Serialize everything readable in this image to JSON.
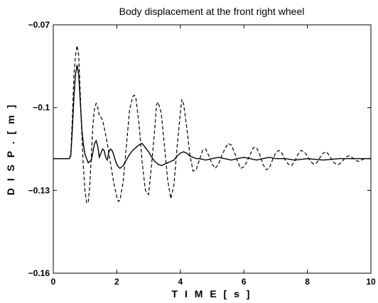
{
  "chart_data": {
    "type": "line",
    "title": "Body displacement at the front right wheel",
    "xlabel": "T I M E   [ s ]",
    "ylabel": "D I S P .   [ m ]",
    "xlim": [
      0,
      10
    ],
    "ylim": [
      -0.16,
      -0.07
    ],
    "xticks": [
      0,
      2,
      4,
      6,
      8,
      10
    ],
    "yticks": [
      -0.16,
      -0.13,
      -0.1,
      -0.07
    ],
    "xtick_labels": [
      "0",
      "2",
      "4",
      "6",
      "8",
      "10"
    ],
    "ytick_labels": [
      "−0.16",
      "−0.13",
      "−0.1",
      "−0.07"
    ],
    "grid": false,
    "series": [
      {
        "style": "solid",
        "color": "#000000",
        "x": [
          0,
          0.5,
          0.55,
          0.6,
          0.65,
          0.7,
          0.75,
          0.8,
          0.85,
          0.9,
          0.95,
          1.0,
          1.1,
          1.2,
          1.3,
          1.35,
          1.4,
          1.45,
          1.5,
          1.55,
          1.6,
          1.65,
          1.7,
          1.75,
          1.8,
          1.85,
          1.9,
          1.95,
          2.0,
          2.05,
          2.1,
          2.2,
          2.3,
          2.4,
          2.5,
          2.6,
          2.7,
          2.8,
          2.9,
          3.0,
          3.1,
          3.2,
          3.3,
          3.4,
          3.5,
          3.6,
          3.7,
          3.8,
          3.9,
          4.0,
          4.1,
          4.2,
          4.3,
          4.4,
          4.5,
          4.6,
          4.8,
          5.0,
          5.2,
          5.4,
          5.6,
          5.8,
          6.0,
          6.2,
          6.4,
          6.6,
          6.8,
          7.0,
          7.3,
          7.6,
          8.0,
          8.5,
          9.0,
          9.5,
          10.0
        ],
        "y": [
          -0.1185,
          -0.1185,
          -0.1175,
          -0.108,
          -0.096,
          -0.088,
          -0.0845,
          -0.088,
          -0.098,
          -0.108,
          -0.1135,
          -0.117,
          -0.12,
          -0.119,
          -0.113,
          -0.112,
          -0.114,
          -0.118,
          -0.1165,
          -0.115,
          -0.1155,
          -0.118,
          -0.119,
          -0.116,
          -0.115,
          -0.1155,
          -0.117,
          -0.119,
          -0.1205,
          -0.1215,
          -0.122,
          -0.121,
          -0.119,
          -0.117,
          -0.1155,
          -0.1145,
          -0.1135,
          -0.113,
          -0.1145,
          -0.116,
          -0.118,
          -0.1195,
          -0.1205,
          -0.121,
          -0.1205,
          -0.12,
          -0.1195,
          -0.119,
          -0.1175,
          -0.1165,
          -0.116,
          -0.1165,
          -0.1175,
          -0.118,
          -0.1185,
          -0.1185,
          -0.119,
          -0.1185,
          -0.118,
          -0.1185,
          -0.119,
          -0.1185,
          -0.118,
          -0.1185,
          -0.119,
          -0.1185,
          -0.118,
          -0.1185,
          -0.1185,
          -0.119,
          -0.1185,
          -0.119,
          -0.1185,
          -0.1185,
          -0.1185
        ]
      },
      {
        "style": "dashed",
        "color": "#000000",
        "x": [
          0,
          0.5,
          0.55,
          0.6,
          0.65,
          0.7,
          0.75,
          0.8,
          0.85,
          0.9,
          0.95,
          1.0,
          1.05,
          1.1,
          1.15,
          1.2,
          1.25,
          1.3,
          1.35,
          1.4,
          1.45,
          1.5,
          1.55,
          1.6,
          1.7,
          1.8,
          1.9,
          2.0,
          2.05,
          2.1,
          2.2,
          2.3,
          2.4,
          2.5,
          2.55,
          2.6,
          2.7,
          2.8,
          2.9,
          3.0,
          3.1,
          3.2,
          3.25,
          3.3,
          3.4,
          3.5,
          3.6,
          3.7,
          3.8,
          3.9,
          4.0,
          4.05,
          4.1,
          4.2,
          4.3,
          4.4,
          4.5,
          4.6,
          4.7,
          4.8,
          4.9,
          5.0,
          5.1,
          5.2,
          5.3,
          5.4,
          5.5,
          5.6,
          5.7,
          5.8,
          5.9,
          6.0,
          6.1,
          6.2,
          6.3,
          6.4,
          6.5,
          6.6,
          6.7,
          6.8,
          6.9,
          7.0,
          7.1,
          7.2,
          7.3,
          7.4,
          7.5,
          7.6,
          7.7,
          7.8,
          7.9,
          8.0,
          8.1,
          8.2,
          8.3,
          8.4,
          8.5,
          8.6,
          8.7,
          8.8,
          8.9,
          9.0,
          9.1,
          9.2,
          9.3,
          9.4,
          9.5,
          9.6,
          9.7,
          9.8,
          9.9,
          10.0
        ],
        "y": [
          -0.1185,
          -0.1185,
          -0.117,
          -0.104,
          -0.088,
          -0.081,
          -0.0775,
          -0.081,
          -0.095,
          -0.11,
          -0.122,
          -0.1305,
          -0.1345,
          -0.1345,
          -0.128,
          -0.117,
          -0.106,
          -0.1,
          -0.0985,
          -0.1,
          -0.103,
          -0.1035,
          -0.1045,
          -0.107,
          -0.113,
          -0.12,
          -0.127,
          -0.1325,
          -0.134,
          -0.1335,
          -0.127,
          -0.114,
          -0.101,
          -0.096,
          -0.0955,
          -0.0965,
          -0.106,
          -0.12,
          -0.13,
          -0.1315,
          -0.12,
          -0.107,
          -0.099,
          -0.098,
          -0.102,
          -0.114,
          -0.126,
          -0.133,
          -0.128,
          -0.114,
          -0.102,
          -0.097,
          -0.0985,
          -0.107,
          -0.117,
          -0.123,
          -0.1225,
          -0.119,
          -0.1155,
          -0.115,
          -0.1175,
          -0.1205,
          -0.122,
          -0.1205,
          -0.1175,
          -0.115,
          -0.113,
          -0.1135,
          -0.116,
          -0.1195,
          -0.122,
          -0.1215,
          -0.1195,
          -0.117,
          -0.1145,
          -0.1145,
          -0.117,
          -0.1205,
          -0.1225,
          -0.122,
          -0.119,
          -0.1165,
          -0.1155,
          -0.1165,
          -0.119,
          -0.1205,
          -0.121,
          -0.1195,
          -0.117,
          -0.1155,
          -0.116,
          -0.1175,
          -0.1195,
          -0.1205,
          -0.12,
          -0.118,
          -0.1165,
          -0.116,
          -0.1175,
          -0.1195,
          -0.1205,
          -0.1205,
          -0.1195,
          -0.118,
          -0.1175,
          -0.118,
          -0.119,
          -0.1195,
          -0.119,
          -0.1185,
          -0.1185,
          -0.1185
        ]
      }
    ]
  }
}
